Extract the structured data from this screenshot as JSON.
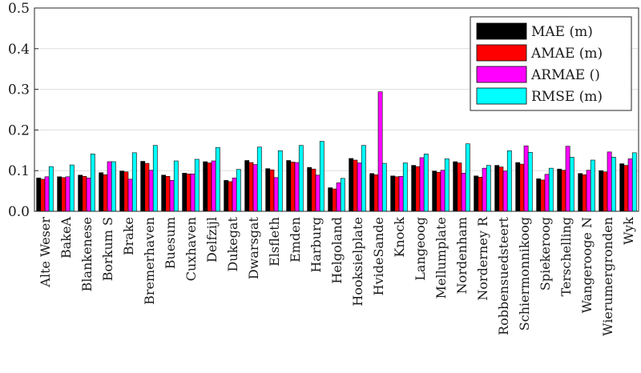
{
  "chart_data": {
    "type": "bar",
    "title": "",
    "xlabel": "",
    "ylabel": "",
    "ylim": [
      0,
      0.5
    ],
    "yticks": [
      "0.0",
      "0.1",
      "0.2",
      "0.3",
      "0.4",
      "0.5"
    ],
    "grid": "horizontal gridlines on y ticks",
    "legend_position": "top-right",
    "categories": [
      "Alte Weser",
      "BakeA",
      "Blankenese",
      "Borkum S",
      "Brake",
      "Bremerhaven",
      "Buesum",
      "Cuxhaven",
      "Delfzijl",
      "Dukegat",
      "Dwarsgat",
      "Elsfleth",
      "Emden",
      "Harburg",
      "Helgoland",
      "Hooksielplate",
      "HvideSande",
      "Knock",
      "Langeoog",
      "Mellumplate",
      "Nordenham",
      "Norderney R",
      "Robbensuedsteert",
      "Schiermonnikoog",
      "Spiekeroog",
      "Terschelling",
      "Wangerooge N",
      "Wierumergronden",
      "Wyk"
    ],
    "series": [
      {
        "name": "MAE (m)",
        "color": "#000000",
        "values": [
          0.082,
          0.085,
          0.089,
          0.095,
          0.099,
          0.123,
          0.089,
          0.094,
          0.122,
          0.076,
          0.125,
          0.105,
          0.125,
          0.108,
          0.058,
          0.13,
          0.093,
          0.087,
          0.113,
          0.099,
          0.122,
          0.087,
          0.113,
          0.12,
          0.08,
          0.104,
          0.093,
          0.1,
          0.117
        ]
      },
      {
        "name": "AMAE (m)",
        "color": "#ff0000",
        "values": [
          0.079,
          0.083,
          0.086,
          0.09,
          0.097,
          0.118,
          0.086,
          0.092,
          0.119,
          0.073,
          0.12,
          0.102,
          0.121,
          0.104,
          0.055,
          0.126,
          0.09,
          0.085,
          0.11,
          0.096,
          0.119,
          0.084,
          0.109,
          0.116,
          0.077,
          0.101,
          0.09,
          0.097,
          0.113
        ]
      },
      {
        "name": "ARMAE ()",
        "color": "#ff00ff",
        "values": [
          0.085,
          0.085,
          0.082,
          0.122,
          0.079,
          0.101,
          0.076,
          0.092,
          0.124,
          0.082,
          0.115,
          0.083,
          0.12,
          0.089,
          0.07,
          0.119,
          0.294,
          0.086,
          0.132,
          0.101,
          0.094,
          0.106,
          0.099,
          0.161,
          0.091,
          0.16,
          0.101,
          0.146,
          0.129
        ]
      },
      {
        "name": "RMSE (m)",
        "color": "#00ffff",
        "values": [
          0.11,
          0.114,
          0.141,
          0.122,
          0.144,
          0.162,
          0.124,
          0.128,
          0.157,
          0.103,
          0.158,
          0.149,
          0.162,
          0.172,
          0.081,
          0.162,
          0.118,
          0.119,
          0.141,
          0.129,
          0.166,
          0.113,
          0.149,
          0.145,
          0.106,
          0.133,
          0.126,
          0.133,
          0.144
        ]
      }
    ]
  }
}
